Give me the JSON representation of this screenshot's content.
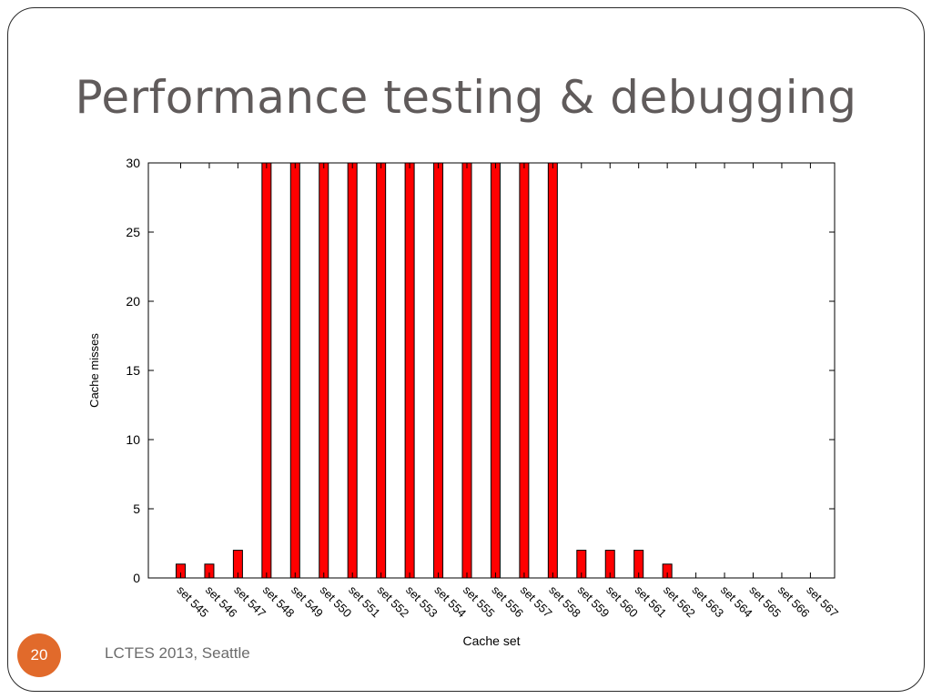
{
  "slide": {
    "title": "Performance testing & debugging",
    "page_number": "20",
    "footer": "LCTES 2013, Seattle",
    "accent_color": "#e16a2b"
  },
  "chart_data": {
    "type": "bar",
    "xlabel": "Cache set",
    "ylabel": "Cache misses",
    "ylim": [
      0,
      30
    ],
    "yticks": [
      0,
      5,
      10,
      15,
      20,
      25,
      30
    ],
    "grid": false,
    "legend": "none",
    "bar_color": "#ff0000",
    "categories": [
      "set 545",
      "set 546",
      "set 547",
      "set 548",
      "set 549",
      "set 550",
      "set 551",
      "set 552",
      "set 553",
      "set 554",
      "set 555",
      "set 556",
      "set 557",
      "set 558",
      "set 559",
      "set 560",
      "set 561",
      "set 562",
      "set 563",
      "set 564",
      "set 565",
      "set 566",
      "set 567"
    ],
    "values": [
      1,
      1,
      2,
      30,
      30,
      30,
      30,
      30,
      30,
      30,
      30,
      30,
      30,
      30,
      2,
      2,
      2,
      1,
      0,
      0,
      0,
      0,
      0
    ]
  }
}
